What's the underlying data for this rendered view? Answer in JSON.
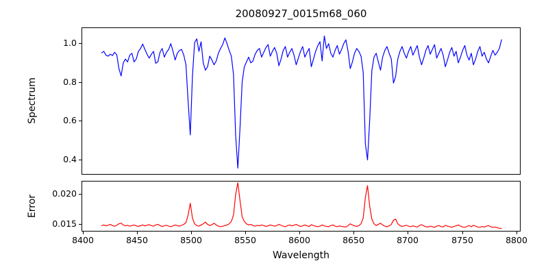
{
  "figure": {
    "background": "#ffffff",
    "spine_color": "#000000",
    "text_color": "#000000"
  },
  "chart_data": {
    "type": "line",
    "title": "20080927_0015m68_060",
    "xlabel": "Wavelength",
    "xlim": [
      8399,
      8804
    ],
    "x_ticks": [
      8400,
      8450,
      8500,
      8550,
      8600,
      8650,
      8700,
      8750,
      8800
    ],
    "x_tick_labels": [
      "8400",
      "8450",
      "8500",
      "8550",
      "8600",
      "8650",
      "8700",
      "8750",
      "8800"
    ],
    "grid": false,
    "legend": "none",
    "x": [
      8417,
      8419,
      8421,
      8423,
      8425,
      8427,
      8429,
      8431,
      8433,
      8435,
      8437,
      8439,
      8441,
      8443,
      8445,
      8447,
      8449,
      8451,
      8453,
      8455,
      8457,
      8459,
      8461,
      8463,
      8465,
      8467,
      8469,
      8471,
      8473,
      8475,
      8477,
      8479,
      8481,
      8483,
      8485,
      8487,
      8489,
      8491,
      8493,
      8495,
      8497,
      8499,
      8501,
      8503,
      8505,
      8507,
      8509,
      8511,
      8513,
      8515,
      8517,
      8519,
      8521,
      8523,
      8525,
      8527,
      8529,
      8531,
      8533,
      8535,
      8537,
      8539,
      8541,
      8543,
      8545,
      8547,
      8549,
      8551,
      8553,
      8555,
      8557,
      8559,
      8561,
      8563,
      8565,
      8567,
      8569,
      8571,
      8573,
      8575,
      8577,
      8579,
      8581,
      8583,
      8585,
      8587,
      8589,
      8591,
      8593,
      8595,
      8597,
      8599,
      8601,
      8603,
      8605,
      8607,
      8609,
      8611,
      8613,
      8615,
      8617,
      8619,
      8621,
      8623,
      8625,
      8627,
      8629,
      8631,
      8633,
      8635,
      8637,
      8639,
      8641,
      8643,
      8645,
      8647,
      8649,
      8651,
      8653,
      8655,
      8657,
      8659,
      8661,
      8663,
      8665,
      8667,
      8669,
      8671,
      8673,
      8675,
      8677,
      8679,
      8681,
      8683,
      8685,
      8687,
      8689,
      8691,
      8693,
      8695,
      8697,
      8699,
      8701,
      8703,
      8705,
      8707,
      8709,
      8711,
      8713,
      8715,
      8717,
      8719,
      8721,
      8723,
      8725,
      8727,
      8729,
      8731,
      8733,
      8735,
      8737,
      8739,
      8741,
      8743,
      8745,
      8747,
      8749,
      8751,
      8753,
      8755,
      8757,
      8759,
      8761,
      8763,
      8765,
      8767,
      8769,
      8771,
      8773,
      8775,
      8777,
      8779,
      8781,
      8783,
      8785,
      8787
    ],
    "absorption_lines": [
      8498,
      8542,
      8662
    ],
    "subplots": [
      {
        "ylabel": "Spectrum",
        "color": "#0000ff",
        "ylim": [
          0.322,
          1.081
        ],
        "yticks": [
          0.4,
          0.6,
          0.8,
          1.0
        ],
        "ytick_labels": [
          "0.4",
          "0.6",
          "0.8",
          "1.0"
        ],
        "values": [
          0.952,
          0.96,
          0.94,
          0.935,
          0.945,
          0.938,
          0.955,
          0.942,
          0.87,
          0.832,
          0.9,
          0.92,
          0.905,
          0.94,
          0.95,
          0.905,
          0.92,
          0.96,
          0.975,
          0.998,
          0.97,
          0.945,
          0.925,
          0.945,
          0.96,
          0.898,
          0.905,
          0.955,
          0.975,
          0.93,
          0.955,
          0.97,
          1.0,
          0.96,
          0.915,
          0.95,
          0.965,
          0.97,
          0.94,
          0.89,
          0.7,
          0.525,
          0.83,
          1.005,
          1.025,
          0.96,
          1.01,
          0.9,
          0.862,
          0.88,
          0.935,
          0.915,
          0.89,
          0.91,
          0.95,
          0.975,
          0.995,
          1.03,
          1.0,
          0.965,
          0.935,
          0.84,
          0.52,
          0.352,
          0.56,
          0.8,
          0.88,
          0.905,
          0.93,
          0.9,
          0.91,
          0.945,
          0.965,
          0.975,
          0.93,
          0.955,
          0.98,
          0.995,
          0.935,
          0.96,
          0.98,
          0.95,
          0.885,
          0.92,
          0.965,
          0.985,
          0.93,
          0.955,
          0.975,
          0.94,
          0.89,
          0.925,
          0.96,
          0.985,
          0.93,
          0.955,
          0.975,
          0.88,
          0.92,
          0.96,
          0.99,
          1.01,
          0.91,
          1.04,
          0.975,
          1.0,
          0.95,
          0.93,
          0.965,
          0.99,
          0.945,
          0.97,
          1.0,
          1.02,
          0.96,
          0.87,
          0.905,
          0.95,
          0.975,
          0.96,
          0.935,
          0.85,
          0.48,
          0.395,
          0.6,
          0.86,
          0.93,
          0.95,
          0.905,
          0.862,
          0.93,
          0.965,
          0.985,
          0.95,
          0.92,
          0.795,
          0.83,
          0.92,
          0.96,
          0.985,
          0.95,
          0.925,
          0.96,
          0.985,
          0.94,
          0.965,
          0.99,
          0.93,
          0.89,
          0.925,
          0.965,
          0.99,
          0.945,
          0.97,
          0.995,
          0.925,
          0.95,
          0.975,
          0.94,
          0.88,
          0.915,
          0.955,
          0.98,
          0.935,
          0.96,
          0.9,
          0.93,
          0.965,
          0.99,
          0.94,
          0.915,
          0.95,
          0.89,
          0.92,
          0.96,
          0.985,
          0.935,
          0.955,
          0.92,
          0.9,
          0.935,
          0.965,
          0.94,
          0.955,
          0.975,
          1.02
        ]
      },
      {
        "ylabel": "Error",
        "color": "#ff0000",
        "ylim": [
          0.0138,
          0.0222
        ],
        "yticks": [
          0.015,
          0.02
        ],
        "ytick_labels": [
          "0.015",
          "0.020"
        ],
        "values": [
          0.0147,
          0.0148,
          0.01465,
          0.01475,
          0.0149,
          0.0147,
          0.0146,
          0.01475,
          0.015,
          0.0151,
          0.0148,
          0.01465,
          0.01475,
          0.0146,
          0.0147,
          0.0148,
          0.01465,
          0.01455,
          0.0147,
          0.0148,
          0.01465,
          0.01475,
          0.01485,
          0.0147,
          0.0146,
          0.0148,
          0.0149,
          0.0147,
          0.01455,
          0.01465,
          0.01475,
          0.0146,
          0.0145,
          0.01465,
          0.0148,
          0.0147,
          0.0146,
          0.01475,
          0.0149,
          0.0152,
          0.0165,
          0.0185,
          0.016,
          0.015,
          0.0147,
          0.0146,
          0.0148,
          0.015,
          0.0153,
          0.0149,
          0.0147,
          0.01485,
          0.0151,
          0.0148,
          0.0146,
          0.0145,
          0.0146,
          0.0147,
          0.0148,
          0.015,
          0.0154,
          0.0165,
          0.02,
          0.022,
          0.019,
          0.0162,
          0.0154,
          0.015,
          0.0148,
          0.0149,
          0.0147,
          0.0146,
          0.01475,
          0.01465,
          0.0148,
          0.0147,
          0.01455,
          0.01465,
          0.0148,
          0.0147,
          0.0146,
          0.0147,
          0.0149,
          0.01475,
          0.0146,
          0.0145,
          0.0147,
          0.0148,
          0.01465,
          0.01475,
          0.0149,
          0.0147,
          0.01455,
          0.01465,
          0.0148,
          0.01465,
          0.01455,
          0.01485,
          0.0147,
          0.0146,
          0.0145,
          0.0146,
          0.0148,
          0.01465,
          0.01455,
          0.0145,
          0.0147,
          0.0148,
          0.0146,
          0.0145,
          0.01465,
          0.01455,
          0.0145,
          0.01445,
          0.0147,
          0.015,
          0.0148,
          0.01465,
          0.01455,
          0.0147,
          0.015,
          0.016,
          0.0195,
          0.0215,
          0.018,
          0.0158,
          0.015,
          0.0147,
          0.0149,
          0.0151,
          0.0148,
          0.0146,
          0.0145,
          0.01465,
          0.0149,
          0.0156,
          0.0158,
          0.015,
          0.0147,
          0.01455,
          0.01465,
          0.01475,
          0.0146,
          0.0145,
          0.01465,
          0.01455,
          0.01445,
          0.0147,
          0.01485,
          0.01465,
          0.0145,
          0.01445,
          0.0146,
          0.0145,
          0.0144,
          0.0146,
          0.0147,
          0.01455,
          0.01445,
          0.01475,
          0.0146,
          0.0145,
          0.0144,
          0.01455,
          0.01465,
          0.0148,
          0.0146,
          0.01445,
          0.0144,
          0.01455,
          0.0147,
          0.0145,
          0.01475,
          0.0146,
          0.01445,
          0.0144,
          0.01455,
          0.01445,
          0.0146,
          0.0147,
          0.0145,
          0.0144,
          0.01445,
          0.01435,
          0.01425,
          0.0142
        ]
      }
    ]
  }
}
